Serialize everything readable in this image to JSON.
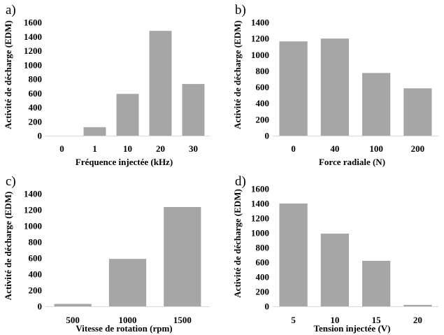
{
  "chart_data": [
    {
      "type": "bar",
      "panel_label": "a)",
      "categories": [
        "0",
        "1",
        "10",
        "20",
        "30"
      ],
      "values": [
        0,
        120,
        590,
        1480,
        730
      ],
      "xlabel": "Fréquence injectée (kHz)",
      "ylabel": "Activité de décharge (EDM)",
      "ylim": [
        0,
        1600
      ],
      "yticks": [
        "0",
        "200",
        "400",
        "600",
        "800",
        "1000",
        "1200",
        "1400",
        "1600"
      ],
      "grid": false,
      "bar_color": "#a6a6a6"
    },
    {
      "type": "bar",
      "panel_label": "b)",
      "categories": [
        "0",
        "40",
        "100",
        "200"
      ],
      "values": [
        1165,
        1200,
        775,
        585
      ],
      "xlabel": "Force radiale (N)",
      "ylabel": "Activité de décharge (EDM)",
      "ylim": [
        0,
        1400
      ],
      "yticks": [
        "0",
        "200",
        "400",
        "600",
        "800",
        "1000",
        "1200",
        "1400"
      ],
      "grid": false,
      "bar_color": "#a6a6a6"
    },
    {
      "type": "bar",
      "panel_label": "c)",
      "categories": [
        "500",
        "1000",
        "1500"
      ],
      "values": [
        30,
        590,
        1235
      ],
      "xlabel": "Vitesse de rotation (rpm)",
      "ylabel": "Activité de décharge (EDM)",
      "ylim": [
        0,
        1400
      ],
      "yticks": [
        "0",
        "200",
        "400",
        "600",
        "800",
        "1000",
        "1200",
        "1400"
      ],
      "grid": false,
      "bar_color": "#a6a6a6"
    },
    {
      "type": "bar",
      "panel_label": "d)",
      "categories": [
        "5",
        "10",
        "15",
        "20"
      ],
      "values": [
        1400,
        990,
        620,
        20
      ],
      "xlabel": "Tension injectée (V)",
      "ylabel": "Activité de décharge (EDM)",
      "ylim": [
        0,
        1600
      ],
      "yticks": [
        "0",
        "200",
        "400",
        "600",
        "800",
        "1000",
        "1200",
        "1400",
        "1600"
      ],
      "grid": false,
      "bar_color": "#a6a6a6"
    }
  ]
}
